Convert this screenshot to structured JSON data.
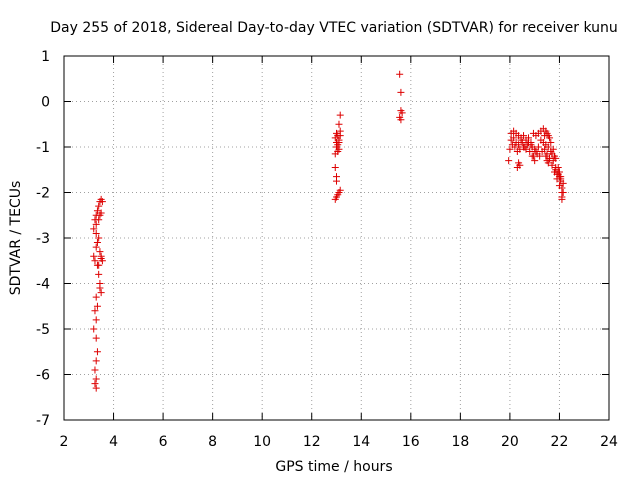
{
  "chart_data": {
    "type": "scatter",
    "title": "Day 255 of 2018, Sidereal Day-to-day VTEC variation (SDTVAR) for receiver kunu",
    "xlabel": "GPS time / hours",
    "ylabel": "SDTVAR / TECUs",
    "xlim": [
      2,
      24
    ],
    "ylim": [
      -7,
      1
    ],
    "xticks": [
      "2",
      "4",
      "6",
      "8",
      "10",
      "12",
      "14",
      "16",
      "18",
      "20",
      "22",
      "24"
    ],
    "yticks": [
      "1",
      "0",
      "-1",
      "-2",
      "-3",
      "-4",
      "-5",
      "-6",
      "-7"
    ],
    "grid": true,
    "marker": "+",
    "color": "#dd0000",
    "series": [
      {
        "name": "SDTVAR",
        "x": [
          3.2,
          3.25,
          3.3,
          3.3,
          3.35,
          3.4,
          3.45,
          3.5,
          3.55,
          3.3,
          3.35,
          3.4,
          3.45,
          3.5,
          3.55,
          3.35,
          3.4,
          3.45,
          3.5,
          3.3,
          3.35,
          3.25,
          3.3,
          3.2,
          3.3,
          3.35,
          3.3,
          3.25,
          3.3,
          3.3,
          3.25,
          3.2,
          3.25,
          3.3,
          3.4,
          3.45,
          3.5,
          3.5,
          3.4,
          3.45,
          12.95,
          13.0,
          13.05,
          13.1,
          13.15,
          13.0,
          13.05,
          13.1,
          13.15,
          12.95,
          13.0,
          13.05,
          13.1,
          12.95,
          13.0,
          13.0,
          13.05,
          13.1,
          13.15,
          12.95,
          13.0,
          13.1,
          13.15,
          15.55,
          15.6,
          15.6,
          15.65,
          15.6,
          15.55,
          19.95,
          20.05,
          20.15,
          20.25,
          20.35,
          20.45,
          20.55,
          20.65,
          20.75,
          20.85,
          20.95,
          21.05,
          21.15,
          21.25,
          21.35,
          21.45,
          21.55,
          21.65,
          21.75,
          21.85,
          21.95,
          22.05,
          22.1,
          20.0,
          20.1,
          20.2,
          20.3,
          20.4,
          20.5,
          20.6,
          20.7,
          20.8,
          20.9,
          21.0,
          21.1,
          21.2,
          21.3,
          21.4,
          21.5,
          21.6,
          21.7,
          21.8,
          21.9,
          22.0,
          22.1,
          20.05,
          20.15,
          20.25,
          20.35,
          20.45,
          20.55,
          20.65,
          20.75,
          20.85,
          20.95,
          21.05,
          21.15,
          21.25,
          21.35,
          21.45,
          21.55,
          21.65,
          21.75,
          21.85,
          21.95,
          22.05,
          20.3,
          20.35,
          20.4,
          20.9,
          21.0,
          21.4,
          21.5,
          21.6,
          21.45,
          21.5,
          21.55,
          21.6,
          21.7,
          21.8,
          22.0,
          22.05,
          22.1,
          22.15,
          22.1,
          22.15,
          21.9,
          21.85,
          21.95,
          22.0
        ],
        "y": [
          -2.8,
          -2.6,
          -2.5,
          -2.7,
          -2.4,
          -2.3,
          -2.2,
          -2.15,
          -2.2,
          -2.9,
          -3.1,
          -3.0,
          -3.3,
          -3.4,
          -3.5,
          -3.6,
          -3.8,
          -4.0,
          -4.2,
          -4.3,
          -4.5,
          -4.6,
          -4.8,
          -5.0,
          -5.2,
          -5.5,
          -5.7,
          -5.9,
          -6.1,
          -6.3,
          -6.2,
          -3.4,
          -3.5,
          -3.2,
          -2.6,
          -2.5,
          -2.45,
          -3.45,
          -3.6,
          -4.1,
          -0.8,
          -0.7,
          -0.75,
          -0.9,
          -0.3,
          -1.0,
          -1.1,
          -0.85,
          -0.65,
          -1.15,
          -0.9,
          -0.95,
          -1.05,
          -1.45,
          -1.65,
          -1.75,
          -2.05,
          -2.0,
          -1.95,
          -2.15,
          -2.1,
          -0.5,
          -0.75,
          0.6,
          0.2,
          -0.2,
          -0.25,
          -0.4,
          -0.35,
          -1.3,
          -0.7,
          -0.65,
          -0.7,
          -0.75,
          -0.8,
          -0.75,
          -0.85,
          -0.8,
          -0.9,
          -0.7,
          -0.75,
          -0.7,
          -0.65,
          -0.6,
          -0.65,
          -0.75,
          -0.9,
          -1.05,
          -1.25,
          -1.45,
          -1.7,
          -2.0,
          -1.05,
          -0.95,
          -1.0,
          -1.1,
          -1.05,
          -0.9,
          -1.0,
          -0.95,
          -1.1,
          -1.0,
          -1.05,
          -1.15,
          -1.2,
          -1.1,
          -1.05,
          -1.15,
          -1.25,
          -1.4,
          -1.55,
          -1.7,
          -1.85,
          -2.1,
          -0.85,
          -0.8,
          -0.9,
          -0.95,
          -0.85,
          -1.0,
          -1.05,
          -0.9,
          -0.95,
          -1.2,
          -1.1,
          -1.0,
          -0.85,
          -0.9,
          -0.95,
          -1.0,
          -1.1,
          -1.3,
          -1.45,
          -1.6,
          -1.75,
          -1.45,
          -1.35,
          -1.4,
          -1.2,
          -1.3,
          -0.75,
          -0.7,
          -0.8,
          -1.2,
          -1.3,
          -1.35,
          -1.25,
          -1.15,
          -1.2,
          -1.55,
          -1.65,
          -1.9,
          -2.0,
          -2.15,
          -1.8,
          -1.6,
          -1.5,
          -1.55,
          -1.65
        ]
      }
    ]
  }
}
